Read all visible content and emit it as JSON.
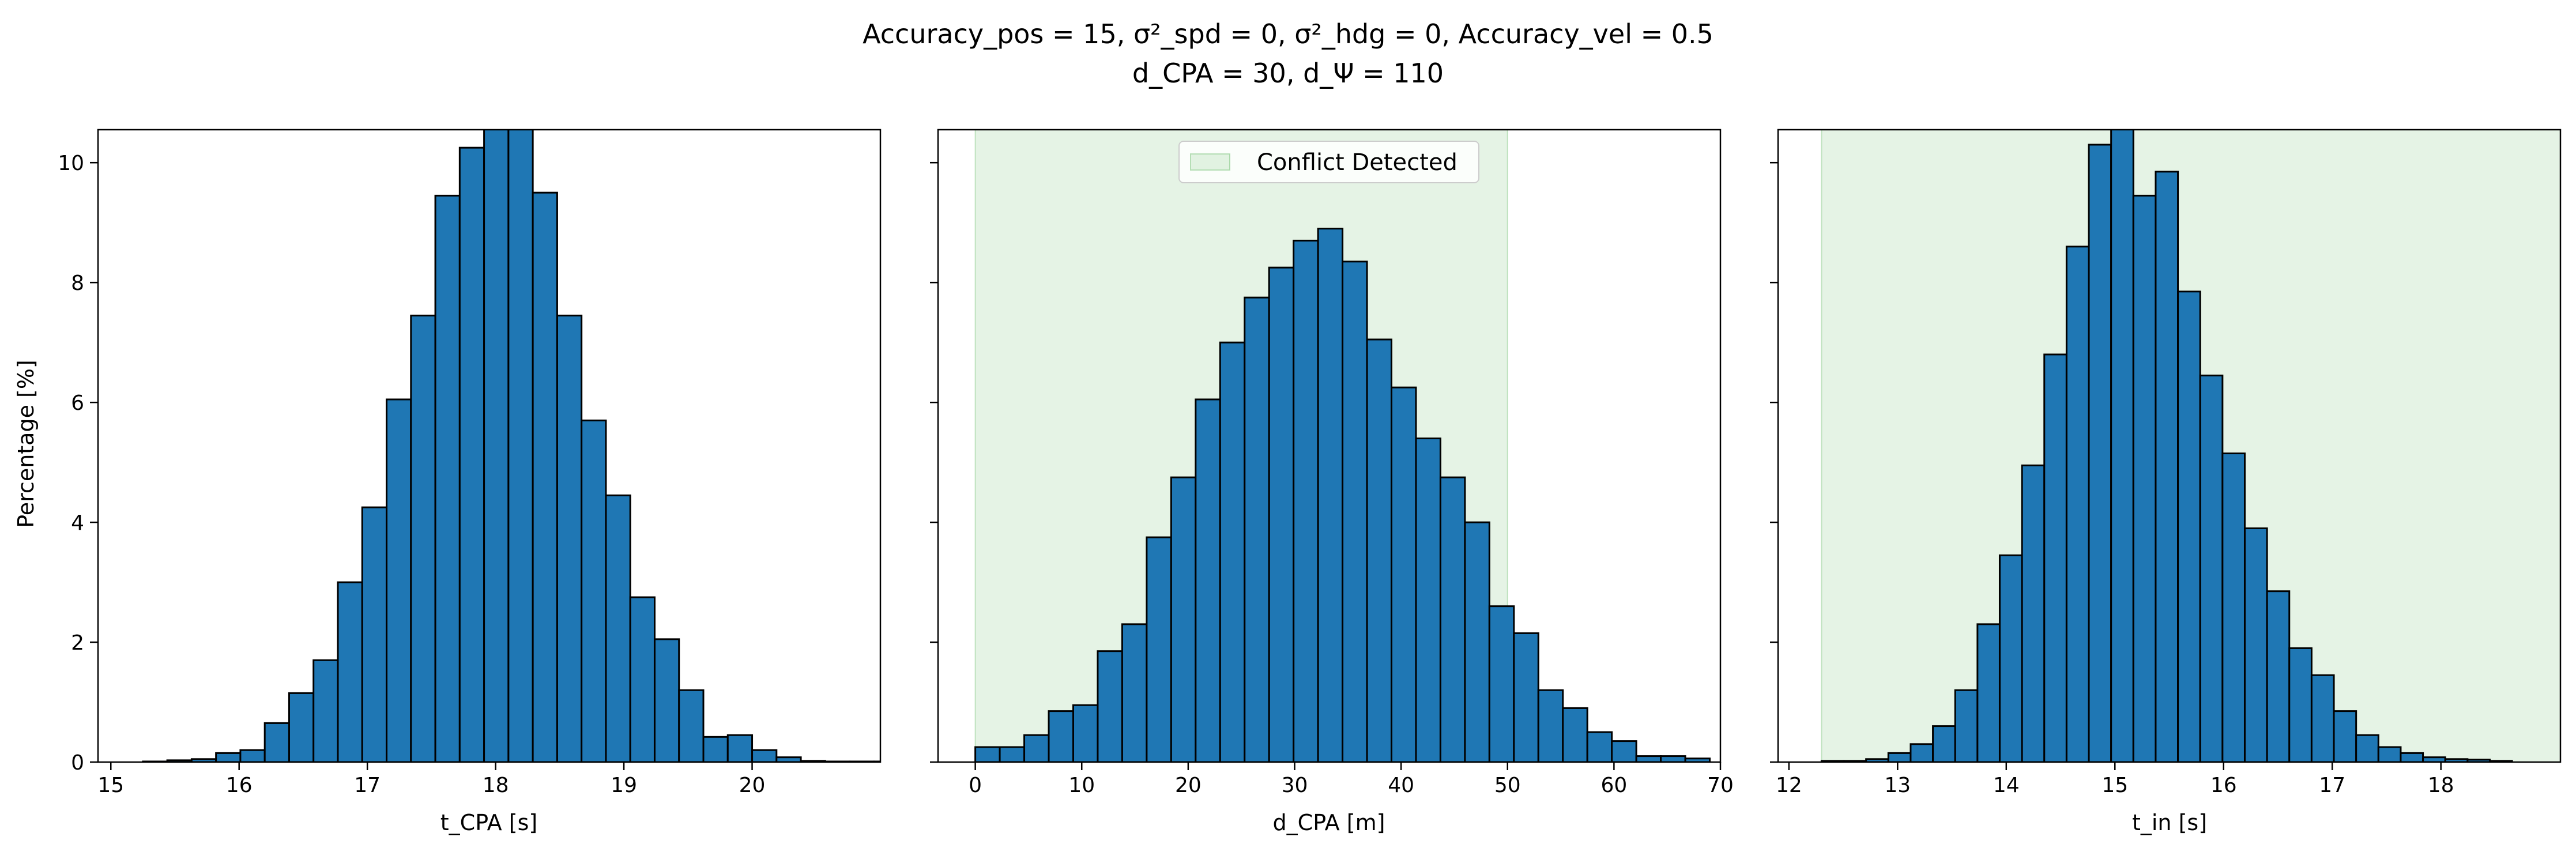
{
  "figure": {
    "title_line1": "Accuracy_pos = 15, σ²_spd = 0, σ²_hdg = 0, Accuracy_vel = 0.5",
    "title_line2": "d_CPA = 30, d_Ψ = 110"
  },
  "chart_data": [
    {
      "type": "bar",
      "xlabel": "t_CPA [s]",
      "ylabel": "Percentage [%]",
      "xlim": [
        14.9,
        21.0
      ],
      "ylim": [
        0,
        10.55
      ],
      "xticks": [
        15,
        16,
        17,
        18,
        19,
        20
      ],
      "yticks": [
        0,
        2,
        4,
        6,
        8,
        10
      ],
      "bin_start": 15.25,
      "bin_width": 0.19,
      "values": [
        0.01,
        0.03,
        0.05,
        0.15,
        0.2,
        0.65,
        1.15,
        1.7,
        3.0,
        4.25,
        6.05,
        7.45,
        9.45,
        10.25,
        10.6,
        10.65,
        9.5,
        7.45,
        5.7,
        4.45,
        2.75,
        2.05,
        1.2,
        0.42,
        0.45,
        0.2,
        0.08,
        0.02,
        0.01,
        0.01,
        0.01
      ],
      "legend": null
    },
    {
      "type": "bar",
      "xlabel": "d_CPA [m]",
      "ylabel": "",
      "xlim": [
        -3.5,
        70.0
      ],
      "ylim": [
        0,
        10.55
      ],
      "xticks": [
        0,
        10,
        20,
        30,
        40,
        50,
        60,
        70
      ],
      "yticks": [
        0,
        2,
        4,
        6,
        8,
        10
      ],
      "bin_start": 0.0,
      "bin_width": 2.3,
      "values": [
        0.25,
        0.25,
        0.45,
        0.85,
        0.95,
        1.85,
        2.3,
        3.75,
        4.75,
        6.05,
        7.0,
        7.75,
        8.25,
        8.7,
        8.9,
        8.35,
        7.05,
        6.25,
        5.4,
        4.75,
        4.0,
        2.6,
        2.15,
        1.2,
        0.9,
        0.5,
        0.35,
        0.1,
        0.1,
        0.06
      ],
      "shaded_region": [
        0,
        50
      ],
      "legend": {
        "label": "Conflict Detected",
        "color": "#2ca02c",
        "position": "top-center"
      }
    },
    {
      "type": "bar",
      "xlabel": "t_in [s]",
      "ylabel": "",
      "xlim": [
        11.9,
        19.1
      ],
      "ylim": [
        0,
        10.55
      ],
      "xticks": [
        12,
        13,
        14,
        15,
        16,
        17,
        18
      ],
      "yticks": [
        0,
        2,
        4,
        6,
        8,
        10
      ],
      "bin_start": 12.3,
      "bin_width": 0.205,
      "values": [
        0.02,
        0.02,
        0.05,
        0.15,
        0.3,
        0.6,
        1.2,
        2.3,
        3.45,
        4.95,
        6.8,
        8.6,
        10.3,
        10.6,
        9.45,
        9.85,
        7.85,
        6.45,
        5.15,
        3.9,
        2.85,
        1.9,
        1.45,
        0.85,
        0.45,
        0.25,
        0.15,
        0.08,
        0.05,
        0.04,
        0.02
      ],
      "shaded_region": [
        12.3,
        19.1
      ],
      "legend": null
    }
  ],
  "colors": {
    "bar": "#1f77b4",
    "edge": "#000000",
    "shade": "#2ca02c"
  }
}
